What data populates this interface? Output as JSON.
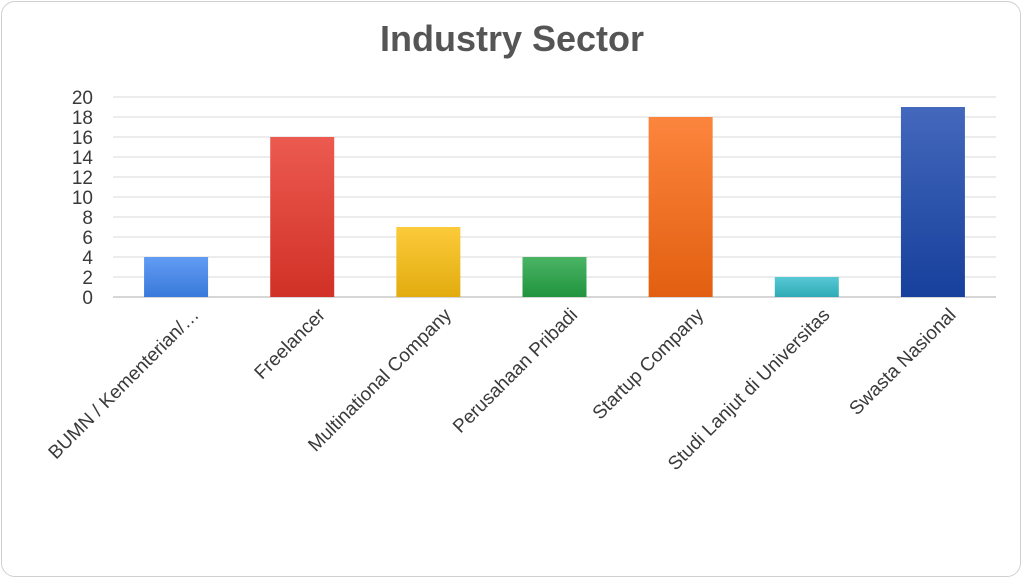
{
  "chart_data": {
    "type": "bar",
    "title": "Industry Sector",
    "categories": [
      "BUMN / Kementerian/…",
      "Freelancer",
      "Multinational Company",
      "Perusahaan Pribadi",
      "Startup Company",
      "Studi Lanjut di Universitas",
      "Swasta Nasional"
    ],
    "values": [
      4,
      16,
      7,
      4,
      18,
      2,
      19
    ],
    "colors": [
      "#3f86f2",
      "#e8362a",
      "#fbbf10",
      "#23a445",
      "#fb6a12",
      "#33bdca",
      "#1a47ad"
    ],
    "ylim": [
      0,
      20
    ],
    "yticks": [
      0,
      2,
      4,
      6,
      8,
      10,
      12,
      14,
      16,
      18,
      20
    ],
    "grid": true,
    "legend": "none"
  }
}
